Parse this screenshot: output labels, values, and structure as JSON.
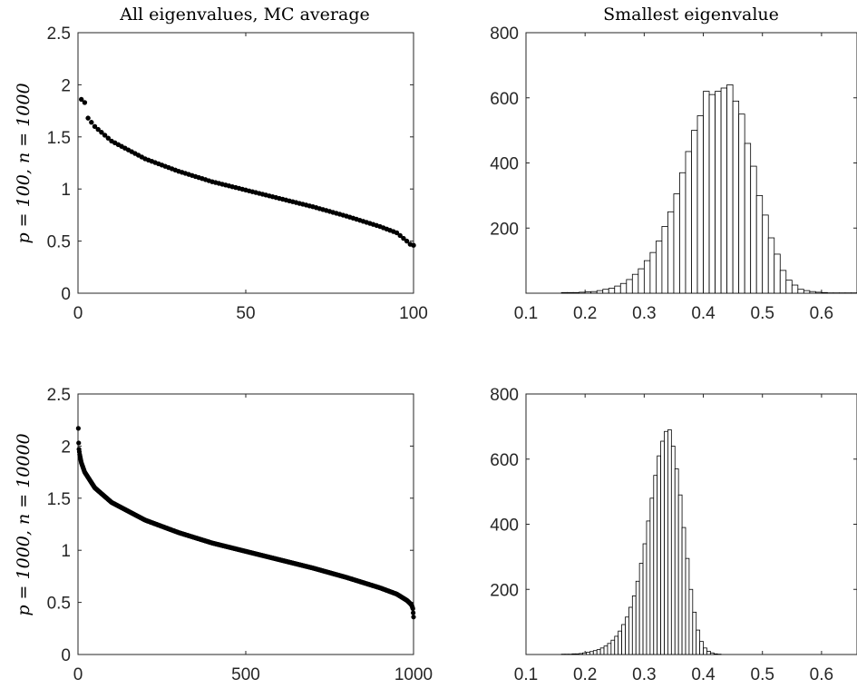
{
  "chart_data": [
    {
      "type": "scatter",
      "title": "All eigenvalues, MC average",
      "ylabel": "p = 100, n = 1000",
      "xlim": [
        0,
        100
      ],
      "ylim": [
        0,
        2.5
      ],
      "xticks": [
        0,
        50,
        100
      ],
      "yticks": [
        0,
        0.5,
        1,
        1.5,
        2,
        2.5
      ],
      "grid": false,
      "n_points": 100,
      "points_sample": [
        [
          1,
          1.86
        ],
        [
          2,
          1.83
        ],
        [
          3,
          1.68
        ],
        [
          5,
          1.6
        ],
        [
          10,
          1.46
        ],
        [
          20,
          1.29
        ],
        [
          30,
          1.17
        ],
        [
          40,
          1.07
        ],
        [
          50,
          0.99
        ],
        [
          60,
          0.91
        ],
        [
          70,
          0.83
        ],
        [
          80,
          0.74
        ],
        [
          90,
          0.64
        ],
        [
          95,
          0.58
        ],
        [
          98,
          0.5
        ],
        [
          99,
          0.47
        ],
        [
          100,
          0.46
        ]
      ]
    },
    {
      "type": "bar",
      "title": "Smallest eigenvalue",
      "xlim": [
        0.1,
        0.66
      ],
      "ylim": [
        0,
        800
      ],
      "xticks": [
        0.1,
        0.2,
        0.3,
        0.4,
        0.5,
        0.6
      ],
      "yticks": [
        200,
        400,
        600,
        800
      ],
      "bin_start": 0.16,
      "bin_width": 0.01,
      "values": [
        2,
        2,
        2,
        3,
        4,
        5,
        8,
        12,
        15,
        22,
        30,
        42,
        58,
        75,
        100,
        125,
        160,
        205,
        250,
        305,
        370,
        435,
        500,
        545,
        620,
        610,
        620,
        630,
        640,
        590,
        550,
        460,
        390,
        300,
        240,
        170,
        120,
        70,
        40,
        25,
        12,
        8,
        5,
        3,
        2,
        1,
        1,
        1,
        1,
        1
      ]
    },
    {
      "type": "scatter",
      "ylabel": "p = 1000, n = 10000",
      "xlim": [
        0,
        1000
      ],
      "ylim": [
        0,
        2.5
      ],
      "xticks": [
        0,
        500,
        1000
      ],
      "yticks": [
        0,
        0.5,
        1,
        1.5,
        2,
        2.5
      ],
      "grid": false,
      "n_points": 1000,
      "points_sample": [
        [
          1,
          2.17
        ],
        [
          2,
          2.03
        ],
        [
          3,
          1.97
        ],
        [
          5,
          1.92
        ],
        [
          10,
          1.84
        ],
        [
          20,
          1.75
        ],
        [
          50,
          1.6
        ],
        [
          100,
          1.46
        ],
        [
          200,
          1.29
        ],
        [
          300,
          1.17
        ],
        [
          400,
          1.07
        ],
        [
          500,
          0.99
        ],
        [
          600,
          0.91
        ],
        [
          700,
          0.83
        ],
        [
          800,
          0.74
        ],
        [
          900,
          0.64
        ],
        [
          950,
          0.58
        ],
        [
          980,
          0.52
        ],
        [
          990,
          0.49
        ],
        [
          995,
          0.47
        ],
        [
          998,
          0.44
        ],
        [
          1000,
          0.36
        ]
      ]
    },
    {
      "type": "bar",
      "xlim": [
        0.1,
        0.66
      ],
      "ylim": [
        0,
        800
      ],
      "xticks": [
        0.1,
        0.2,
        0.3,
        0.4,
        0.5,
        0.6
      ],
      "yticks": [
        200,
        400,
        600,
        800
      ],
      "bin_start": 0.16,
      "bin_width": 0.006,
      "values": [
        1,
        1,
        1,
        2,
        2,
        3,
        5,
        7,
        9,
        12,
        15,
        20,
        26,
        34,
        44,
        56,
        72,
        92,
        115,
        145,
        180,
        225,
        280,
        340,
        410,
        480,
        550,
        610,
        655,
        685,
        690,
        640,
        570,
        490,
        390,
        295,
        200,
        130,
        75,
        40,
        20,
        10,
        5,
        2,
        1
      ]
    }
  ]
}
